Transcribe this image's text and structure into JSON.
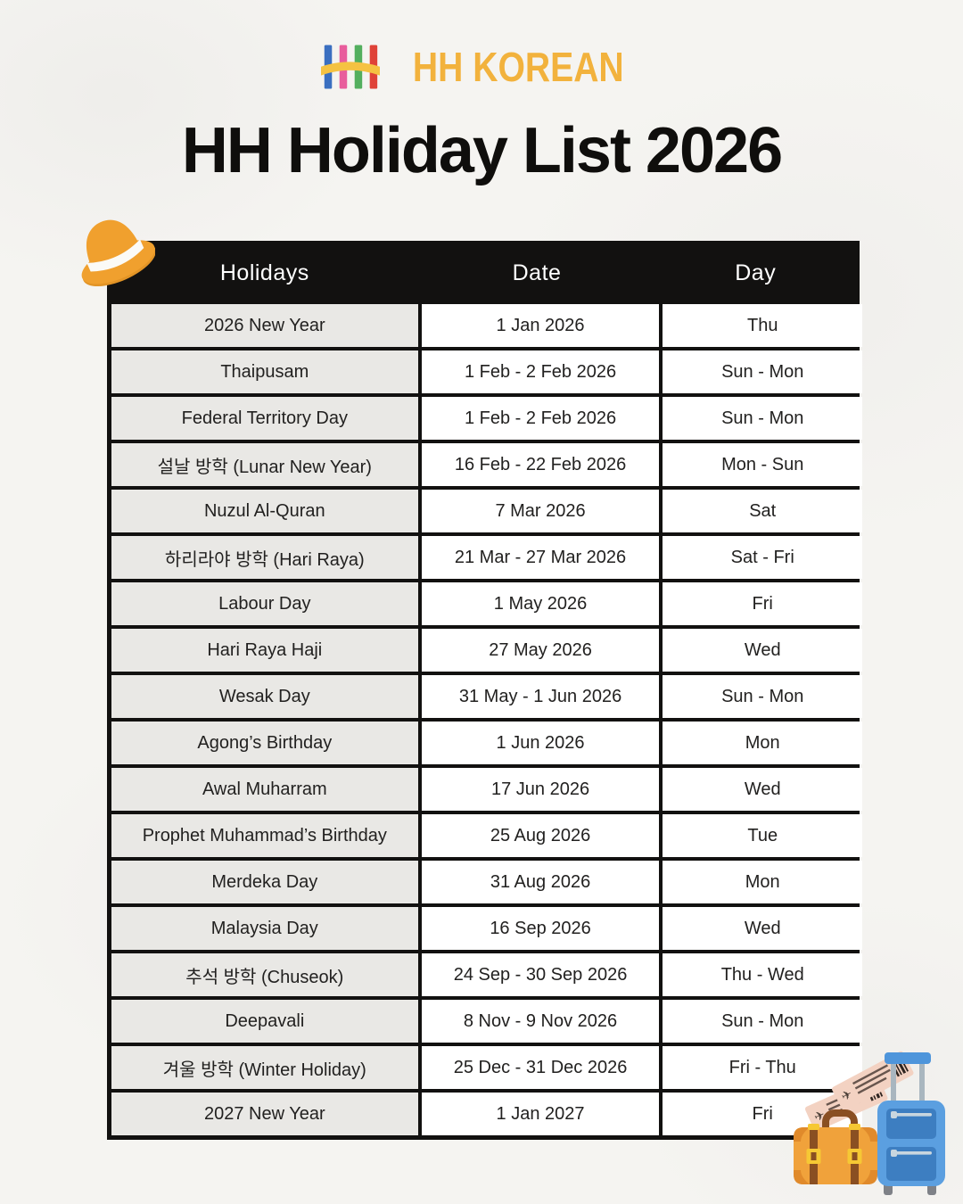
{
  "logo": {
    "text": "HH KOREAN",
    "bar_colors": [
      "#3a6fc0",
      "#e85d9c",
      "#53af5e",
      "#df4238"
    ],
    "arc_color": "#f5c242",
    "text_color": "#f2b23d"
  },
  "title": "HH Holiday List 2026",
  "table": {
    "headers": [
      "Holidays",
      "Date",
      "Day"
    ],
    "rows": [
      {
        "holiday": "2026 New Year",
        "date": "1 Jan 2026",
        "day": "Thu"
      },
      {
        "holiday": "Thaipusam",
        "date": "1 Feb - 2 Feb 2026",
        "day": "Sun - Mon"
      },
      {
        "holiday": "Federal Territory Day",
        "date": "1 Feb - 2 Feb 2026",
        "day": "Sun - Mon"
      },
      {
        "holiday": "설날 방학 (Lunar New Year)",
        "date": "16 Feb - 22 Feb 2026",
        "day": "Mon - Sun"
      },
      {
        "holiday": "Nuzul Al-Quran",
        "date": "7 Mar 2026",
        "day": "Sat"
      },
      {
        "holiday": "하리라야 방학 (Hari Raya)",
        "date": "21 Mar - 27 Mar 2026",
        "day": "Sat - Fri"
      },
      {
        "holiday": "Labour Day",
        "date": "1 May 2026",
        "day": "Fri"
      },
      {
        "holiday": "Hari Raya Haji",
        "date": "27 May 2026",
        "day": "Wed"
      },
      {
        "holiday": "Wesak Day",
        "date": "31 May - 1 Jun 2026",
        "day": "Sun - Mon"
      },
      {
        "holiday": "Agong’s Birthday",
        "date": "1 Jun 2026",
        "day": "Mon"
      },
      {
        "holiday": "Awal Muharram",
        "date": "17 Jun 2026",
        "day": "Wed"
      },
      {
        "holiday": "Prophet Muhammad’s Birthday",
        "date": "25 Aug 2026",
        "day": "Tue"
      },
      {
        "holiday": "Merdeka Day",
        "date": "31 Aug 2026",
        "day": "Mon"
      },
      {
        "holiday": "Malaysia Day",
        "date": "16 Sep 2026",
        "day": "Wed"
      },
      {
        "holiday": "추석 방학 (Chuseok)",
        "date": "24 Sep - 30 Sep 2026",
        "day": "Thu - Wed"
      },
      {
        "holiday": "Deepavali",
        "date": "8 Nov - 9 Nov 2026",
        "day": "Sun - Mon"
      },
      {
        "holiday": "겨울 방학 (Winter Holiday)",
        "date": "25 Dec - 31 Dec 2026",
        "day": "Fri - Thu"
      },
      {
        "holiday": "2027 New Year",
        "date": "1 Jan 2027",
        "day": "Fri"
      }
    ]
  },
  "decorations": {
    "hat_icon": "orange sun hat with white band",
    "luggage_icon": "blue trolley suitcase, orange vintage suitcase, two pink flight tickets"
  },
  "theme": {
    "background": "#f5f4f1",
    "table_border": "#121110",
    "header_bg": "#121110",
    "header_text": "#ffffff",
    "holiday_cell_bg": "#e9e8e5",
    "cell_bg": "#ffffff",
    "title_color": "#0f0e0c",
    "hat_orange": "#f0a02e",
    "suitcase_blue": "#5b9fe0",
    "suitcase_orange": "#f0a23b",
    "ticket_pink": "#f3d2c2"
  }
}
